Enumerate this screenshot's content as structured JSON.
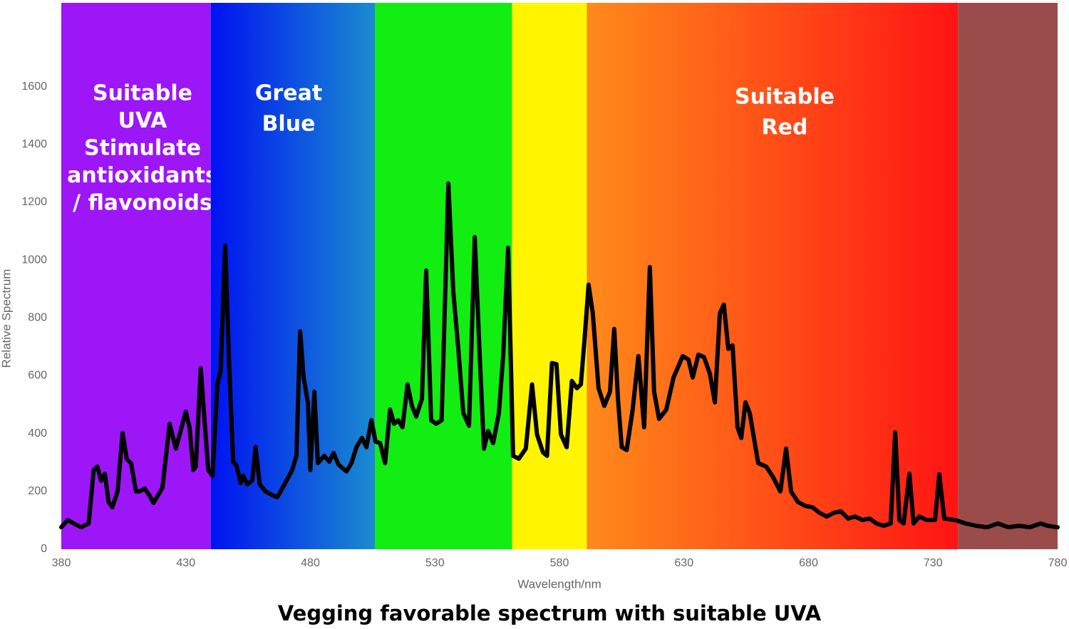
{
  "chart_data": {
    "type": "line",
    "title": "Vegging favorable spectrum with suitable UVA",
    "xlabel": "Wavelength/nm",
    "ylabel": "Relative Spectrum",
    "xlim": [
      380,
      780
    ],
    "ylim": [
      0,
      1890
    ],
    "xticks": [
      380,
      430,
      480,
      530,
      580,
      630,
      680,
      730,
      780
    ],
    "yticks": [
      0,
      200,
      400,
      600,
      800,
      1000,
      1200,
      1400,
      1600
    ],
    "grid": false,
    "bands": [
      {
        "from": 380,
        "to": 440,
        "colors": [
          "#9c16f8",
          "#9c16f8"
        ],
        "label": [
          "Suitable",
          "UVA",
          "Stimulate",
          "antioxidants",
          "/ flavonoids"
        ]
      },
      {
        "from": 440,
        "to": 506,
        "colors": [
          "#0012f2",
          "#1a8cd0"
        ],
        "label": [
          "Great",
          "Blue"
        ]
      },
      {
        "from": 506,
        "to": 561,
        "colors": [
          "#12ee12",
          "#12ee12"
        ]
      },
      {
        "from": 561,
        "to": 591,
        "colors": [
          "#fff500",
          "#fff500"
        ]
      },
      {
        "from": 591,
        "to": 740,
        "colors": [
          "#ff8a1a",
          "#ff1414"
        ],
        "label": [
          "Suitable",
          "Red"
        ]
      },
      {
        "from": 740,
        "to": 780,
        "colors": [
          "#9a4c4a",
          "#9a4c4a"
        ]
      }
    ],
    "series": [
      {
        "name": "Spectrum",
        "color": "#000000",
        "x": [
          380,
          382.6,
          385,
          388,
          391,
          393,
          394.5,
          396,
          397.5,
          399,
          400.5,
          402.6,
          404.6,
          406.3,
          408,
          410,
          411.5,
          413.5,
          415.5,
          417,
          420.6,
          423.5,
          426,
          430,
          431.5,
          433,
          434,
          436,
          437.5,
          439,
          440.7,
          442.7,
          444,
          445.8,
          447.5,
          449,
          450.4,
          452,
          453,
          454.7,
          456.7,
          458,
          459.7,
          462,
          464.7,
          466.7,
          469.6,
          472.7,
          474.4,
          475.9,
          477.3,
          479,
          480,
          481.6,
          483,
          485.6,
          487.6,
          489.3,
          491.3,
          494.5,
          496.5,
          498.5,
          500.7,
          502.5,
          504.5,
          506.2,
          508,
          510,
          512,
          513.6,
          515.3,
          517,
          519,
          520.8,
          522.5,
          524.8,
          526.5,
          528.5,
          530.5,
          532.7,
          535.4,
          537.4,
          539.4,
          541.4,
          543.7,
          546,
          548,
          549.7,
          551.4,
          553.4,
          555.7,
          557.4,
          559.4,
          561.4,
          563.7,
          566.5,
          569,
          571,
          573.4,
          575,
          577,
          578.8,
          580.6,
          582.9,
          585,
          587,
          588.6,
          590,
          591.7,
          593.4,
          595.7,
          598,
          600.3,
          602,
          603.5,
          605,
          607,
          609.4,
          611.7,
          614,
          616.3,
          618,
          620,
          622.9,
          625.8,
          629.5,
          631.8,
          633.5,
          635.8,
          638,
          640.4,
          642.4,
          644.4,
          646,
          647.8,
          649.5,
          651.5,
          653,
          654.7,
          656.4,
          659.8,
          663,
          665.8,
          668.7,
          671,
          673,
          675.8,
          678.7,
          681.6,
          684.4,
          687.3,
          690.2,
          693,
          695.9,
          698.7,
          701.6,
          704.5,
          707.3,
          710.2,
          713,
          714.8,
          716.5,
          718.2,
          720.5,
          722.2,
          724.5,
          727.4,
          730.8,
          732.5,
          734.5,
          738.8,
          743.1,
          747.4,
          751.7,
          756,
          760.3,
          764.6,
          768.9,
          773.2,
          776,
          780
        ],
        "values": [
          76,
          101,
          89,
          76,
          89,
          274,
          286,
          237,
          261,
          163,
          145,
          200,
          402,
          311,
          298,
          200,
          200,
          210,
          185,
          160,
          212,
          434,
          348,
          476,
          422,
          274,
          286,
          626,
          446,
          274,
          254,
          570,
          619,
          1050,
          619,
          303,
          288,
          229,
          254,
          224,
          239,
          353,
          224,
          200,
          187,
          180,
          224,
          274,
          323,
          754,
          594,
          508,
          274,
          545,
          298,
          323,
          303,
          333,
          293,
          269,
          298,
          353,
          385,
          353,
          446,
          372,
          367,
          298,
          483,
          434,
          446,
          422,
          570,
          496,
          459,
          520,
          964,
          446,
          434,
          446,
          1265,
          890,
          693,
          471,
          427,
          1080,
          668,
          348,
          409,
          367,
          471,
          668,
          1043,
          323,
          313,
          348,
          570,
          397,
          335,
          323,
          644,
          640,
          397,
          353,
          582,
          557,
          570,
          717,
          915,
          816,
          557,
          496,
          545,
          762,
          520,
          353,
          343,
          483,
          668,
          422,
          976,
          545,
          451,
          483,
          594,
          668,
          656,
          594,
          673,
          665,
          607,
          508,
          816,
          846,
          693,
          705,
          422,
          385,
          508,
          471,
          298,
          286,
          249,
          200,
          348,
          200,
          163,
          150,
          145,
          126,
          113,
          126,
          131,
          106,
          113,
          101,
          106,
          89,
          81,
          89,
          404,
          101,
          89,
          261,
          89,
          113,
          101,
          101,
          259,
          106,
          101,
          89,
          81,
          76,
          89,
          76,
          81,
          76,
          89,
          81,
          76
        ]
      }
    ]
  }
}
